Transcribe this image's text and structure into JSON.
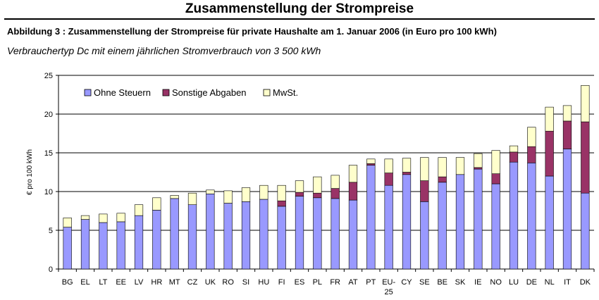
{
  "document": {
    "title": "Zusammenstellung der Strompreise",
    "caption": "Abbildung 3 : Zusammenstellung der Strompreise für private Haushalte am 1.  Januar 2006 (in Euro pro 100 kWh)",
    "subcaption": "Verbrauchertyp Dc mit einem jährlichen Stromverbrauch von 3 500 kWh"
  },
  "colors": {
    "ohne_steuern": "#9999ff",
    "sonstige_abgaben": "#993366",
    "mwst": "#ffffcc",
    "outline": "#000000"
  },
  "chart_data": {
    "type": "bar",
    "stacked": true,
    "title": "",
    "xlabel": "",
    "ylabel": "€ pro 100 kWh",
    "ylim": [
      0,
      25
    ],
    "yticks": [
      0,
      5,
      10,
      15,
      20,
      25
    ],
    "grid": true,
    "legend_position": "top-left",
    "categories": [
      "BG",
      "EL",
      "LT",
      "EE",
      "LV",
      "HR",
      "MT",
      "CZ",
      "UK",
      "RO",
      "SI",
      "HU",
      "FI",
      "ES",
      "PL",
      "FR",
      "AT",
      "PT",
      "EU-25",
      "CY",
      "SE",
      "BE",
      "SK",
      "IE",
      "NO",
      "LU",
      "DE",
      "NL",
      "IT",
      "DK"
    ],
    "series": [
      {
        "name": "Ohne Steuern",
        "color_key": "ohne_steuern",
        "values": [
          5.4,
          6.4,
          6.0,
          6.1,
          6.9,
          7.6,
          9.1,
          8.3,
          9.7,
          8.5,
          8.7,
          9.0,
          8.1,
          9.4,
          9.2,
          9.1,
          8.9,
          13.4,
          10.8,
          12.2,
          8.7,
          11.2,
          12.2,
          12.9,
          11.0,
          13.8,
          13.7,
          12.0,
          15.5,
          9.8
        ]
      },
      {
        "name": "Sonstige Abgaben",
        "color_key": "sonstige_abgaben",
        "values": [
          0.0,
          0.0,
          0.0,
          0.0,
          0.0,
          0.0,
          0.0,
          0.0,
          0.0,
          0.0,
          0.0,
          0.0,
          0.7,
          0.5,
          0.6,
          1.3,
          2.3,
          0.2,
          1.6,
          0.3,
          2.7,
          0.7,
          0.0,
          0.2,
          1.3,
          1.3,
          2.1,
          5.8,
          3.6,
          9.2
        ]
      },
      {
        "name": "MwSt.",
        "color_key": "mwst",
        "values": [
          1.2,
          0.5,
          1.1,
          1.1,
          1.4,
          1.6,
          0.4,
          1.5,
          0.5,
          1.6,
          1.8,
          1.8,
          2.0,
          1.5,
          2.1,
          1.7,
          2.2,
          0.6,
          1.8,
          1.8,
          3.0,
          2.5,
          2.2,
          1.8,
          3.0,
          0.8,
          2.5,
          3.1,
          2.0,
          4.7
        ]
      }
    ]
  }
}
